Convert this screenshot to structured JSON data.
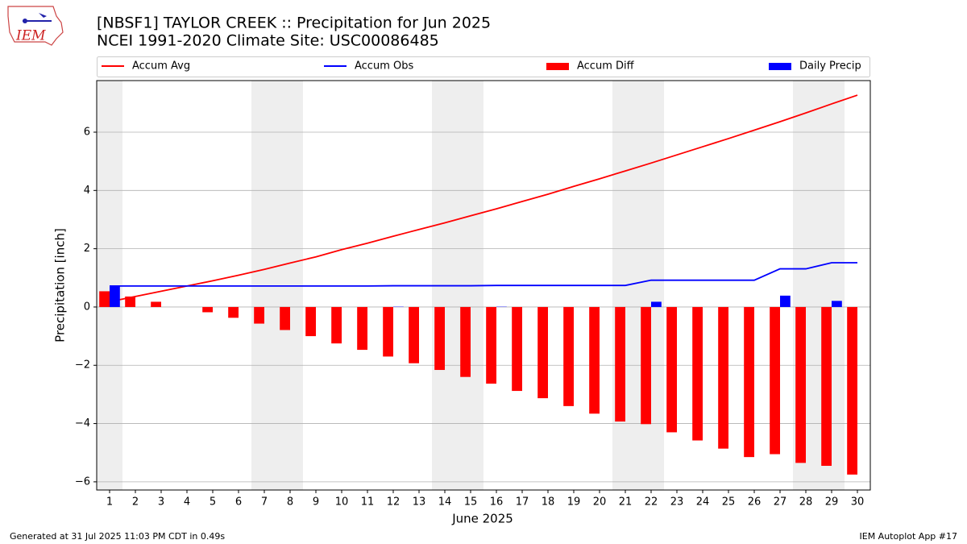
{
  "chart_data": {
    "type": "combo",
    "title": "[NBSF1] TAYLOR CREEK :: Precipitation for Jun 2025",
    "subtitle": "NCEI 1991-2020 Climate Site: USC00086485",
    "logo_text": "IEM",
    "x_label": "June 2025",
    "y_label": "Precipitation [inch]",
    "footer_left": "Generated at 31 Jul 2025 11:03 PM CDT in 0.49s",
    "footer_right": "IEM Autoplot App #17",
    "x": [
      1,
      2,
      3,
      4,
      5,
      6,
      7,
      8,
      9,
      10,
      11,
      12,
      13,
      14,
      15,
      16,
      17,
      18,
      19,
      20,
      21,
      22,
      23,
      24,
      25,
      26,
      27,
      28,
      29,
      30
    ],
    "xlim": [
      0.5,
      30.5
    ],
    "xticks": [
      1,
      2,
      3,
      4,
      5,
      6,
      7,
      8,
      9,
      10,
      11,
      12,
      13,
      14,
      15,
      16,
      17,
      18,
      19,
      20,
      21,
      22,
      23,
      24,
      25,
      26,
      27,
      28,
      29,
      30
    ],
    "ylim": [
      -6.28,
      7.77
    ],
    "yticks": [
      {
        "value": -6,
        "label": "−6"
      },
      {
        "value": -4,
        "label": "−4"
      },
      {
        "value": -2,
        "label": "−2"
      },
      0,
      2,
      4,
      6
    ],
    "grid": true,
    "highlight_days": [
      1,
      7,
      8,
      14,
      15,
      21,
      22,
      28,
      29
    ],
    "highlight_color": "#eeeeee",
    "series": [
      {
        "name": "Accum Avg",
        "kind": "line",
        "color": "#ff0000",
        "values": [
          0.18,
          0.36,
          0.54,
          0.72,
          0.9,
          1.09,
          1.29,
          1.51,
          1.72,
          1.97,
          2.19,
          2.43,
          2.66,
          2.89,
          3.13,
          3.37,
          3.62,
          3.87,
          4.14,
          4.4,
          4.67,
          4.94,
          5.22,
          5.5,
          5.78,
          6.07,
          6.36,
          6.66,
          6.97,
          7.27
        ]
      },
      {
        "name": "Accum Obs",
        "kind": "line",
        "color": "#0000ff",
        "values": [
          0.72,
          0.72,
          0.72,
          0.72,
          0.72,
          0.72,
          0.72,
          0.72,
          0.72,
          0.72,
          0.72,
          0.73,
          0.73,
          0.73,
          0.73,
          0.74,
          0.74,
          0.74,
          0.74,
          0.74,
          0.74,
          0.92,
          0.92,
          0.92,
          0.92,
          0.92,
          1.31,
          1.31,
          1.52,
          1.52
        ]
      },
      {
        "name": "Accum Diff",
        "kind": "bar",
        "color": "#ff0000",
        "offset": -0.2,
        "values": [
          0.54,
          0.36,
          0.18,
          0.0,
          -0.18,
          -0.37,
          -0.57,
          -0.79,
          -1.0,
          -1.25,
          -1.47,
          -1.7,
          -1.93,
          -2.16,
          -2.4,
          -2.63,
          -2.88,
          -3.13,
          -3.4,
          -3.66,
          -3.93,
          -4.02,
          -4.3,
          -4.58,
          -4.86,
          -5.15,
          -5.05,
          -5.35,
          -5.45,
          -5.75
        ]
      },
      {
        "name": "Daily Precip",
        "kind": "bar",
        "color": "#0000ff",
        "offset": 0.2,
        "values": [
          0.72,
          0,
          0,
          0,
          0,
          0,
          0,
          0,
          0,
          0,
          0,
          0.01,
          0,
          0,
          0,
          0.01,
          0,
          0,
          0,
          0,
          0,
          0.18,
          0,
          0,
          0,
          0,
          0.39,
          0,
          0.21,
          0
        ]
      }
    ]
  }
}
